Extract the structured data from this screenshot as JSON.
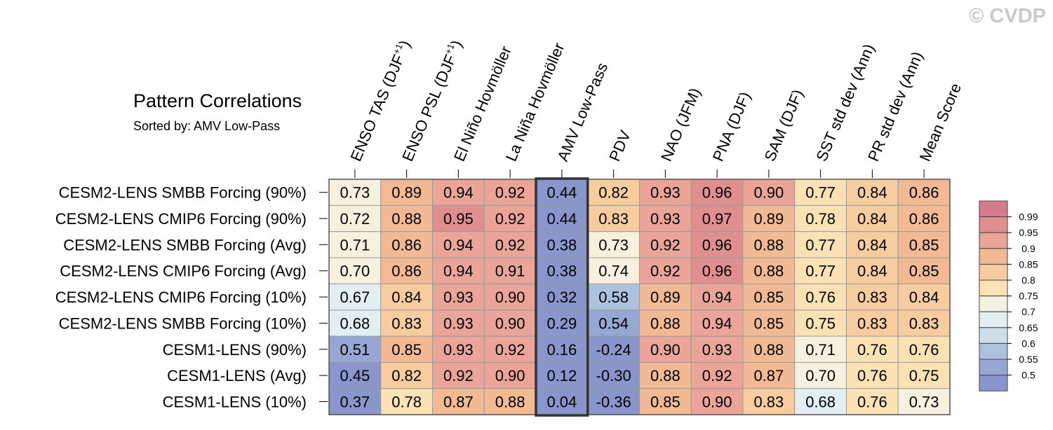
{
  "watermark": "© CVDP",
  "chart_data": {
    "type": "heatmap",
    "title": "Pattern Correlations",
    "subtitle": "Sorted by: AMV Low-Pass",
    "highlighted_column": "AMV Low-Pass",
    "columns": [
      {
        "label": "ENSO TAS (DJF",
        "sup": "+1",
        "close": ")"
      },
      {
        "label": "ENSO PSL (DJF",
        "sup": "+1",
        "close": ")"
      },
      {
        "label": "El Niño Hovmöller"
      },
      {
        "label": "La Niña Hovmöller"
      },
      {
        "label": "AMV Low-Pass"
      },
      {
        "label": "PDV"
      },
      {
        "label": "NAO (JFM)"
      },
      {
        "label": "PNA (DJF)"
      },
      {
        "label": "SAM (DJF)"
      },
      {
        "label": "SST std dev (Ann)"
      },
      {
        "label": "PR std dev (Ann)"
      },
      {
        "label": "Mean Score"
      }
    ],
    "rows": [
      {
        "label": "CESM2-LENS SMBB Forcing (90%)",
        "values": [
          "0.73",
          "0.89",
          "0.94",
          "0.92",
          "0.44",
          "0.82",
          "0.93",
          "0.96",
          "0.90",
          "0.77",
          "0.84",
          "0.86"
        ]
      },
      {
        "label": "CESM2-LENS CMIP6 Forcing (90%)",
        "values": [
          "0.72",
          "0.88",
          "0.95",
          "0.92",
          "0.44",
          "0.83",
          "0.93",
          "0.97",
          "0.89",
          "0.78",
          "0.84",
          "0.86"
        ]
      },
      {
        "label": "CESM2-LENS SMBB Forcing (Avg)",
        "values": [
          "0.71",
          "0.86",
          "0.94",
          "0.92",
          "0.38",
          "0.73",
          "0.92",
          "0.96",
          "0.88",
          "0.77",
          "0.84",
          "0.85"
        ]
      },
      {
        "label": "CESM2-LENS CMIP6 Forcing (Avg)",
        "values": [
          "0.70",
          "0.86",
          "0.94",
          "0.91",
          "0.38",
          "0.74",
          "0.92",
          "0.96",
          "0.88",
          "0.77",
          "0.84",
          "0.85"
        ]
      },
      {
        "label": "CESM2-LENS CMIP6 Forcing (10%)",
        "values": [
          "0.67",
          "0.84",
          "0.93",
          "0.90",
          "0.32",
          "0.58",
          "0.89",
          "0.94",
          "0.85",
          "0.76",
          "0.83",
          "0.84"
        ]
      },
      {
        "label": "CESM2-LENS SMBB Forcing (10%)",
        "values": [
          "0.68",
          "0.83",
          "0.93",
          "0.90",
          "0.29",
          "0.54",
          "0.88",
          "0.94",
          "0.85",
          "0.75",
          "0.83",
          "0.83"
        ]
      },
      {
        "label": "CESM1-LENS (90%)",
        "values": [
          "0.51",
          "0.85",
          "0.93",
          "0.92",
          "0.16",
          "-0.24",
          "0.90",
          "0.93",
          "0.88",
          "0.71",
          "0.76",
          "0.76"
        ]
      },
      {
        "label": "CESM1-LENS (Avg)",
        "values": [
          "0.45",
          "0.82",
          "0.92",
          "0.90",
          "0.12",
          "-0.30",
          "0.88",
          "0.92",
          "0.87",
          "0.70",
          "0.76",
          "0.75"
        ]
      },
      {
        "label": "CESM1-LENS (10%)",
        "values": [
          "0.37",
          "0.78",
          "0.87",
          "0.88",
          "0.04",
          "-0.36",
          "0.85",
          "0.90",
          "0.83",
          "0.68",
          "0.76",
          "0.73"
        ]
      }
    ],
    "colorbar": {
      "labels": [
        "0.99",
        "0.95",
        "0.9",
        "0.85",
        "0.8",
        "0.75",
        "0.7",
        "0.65",
        "0.6",
        "0.55",
        "0.5"
      ],
      "colors": [
        "#d67b8c",
        "#e08f8f",
        "#eba598",
        "#f2b995",
        "#f7cda0",
        "#fbe2b4",
        "#f5f1de",
        "#e2eef2",
        "#ccdfeb",
        "#adc3dd",
        "#95a7d2",
        "#8896cb"
      ]
    }
  }
}
